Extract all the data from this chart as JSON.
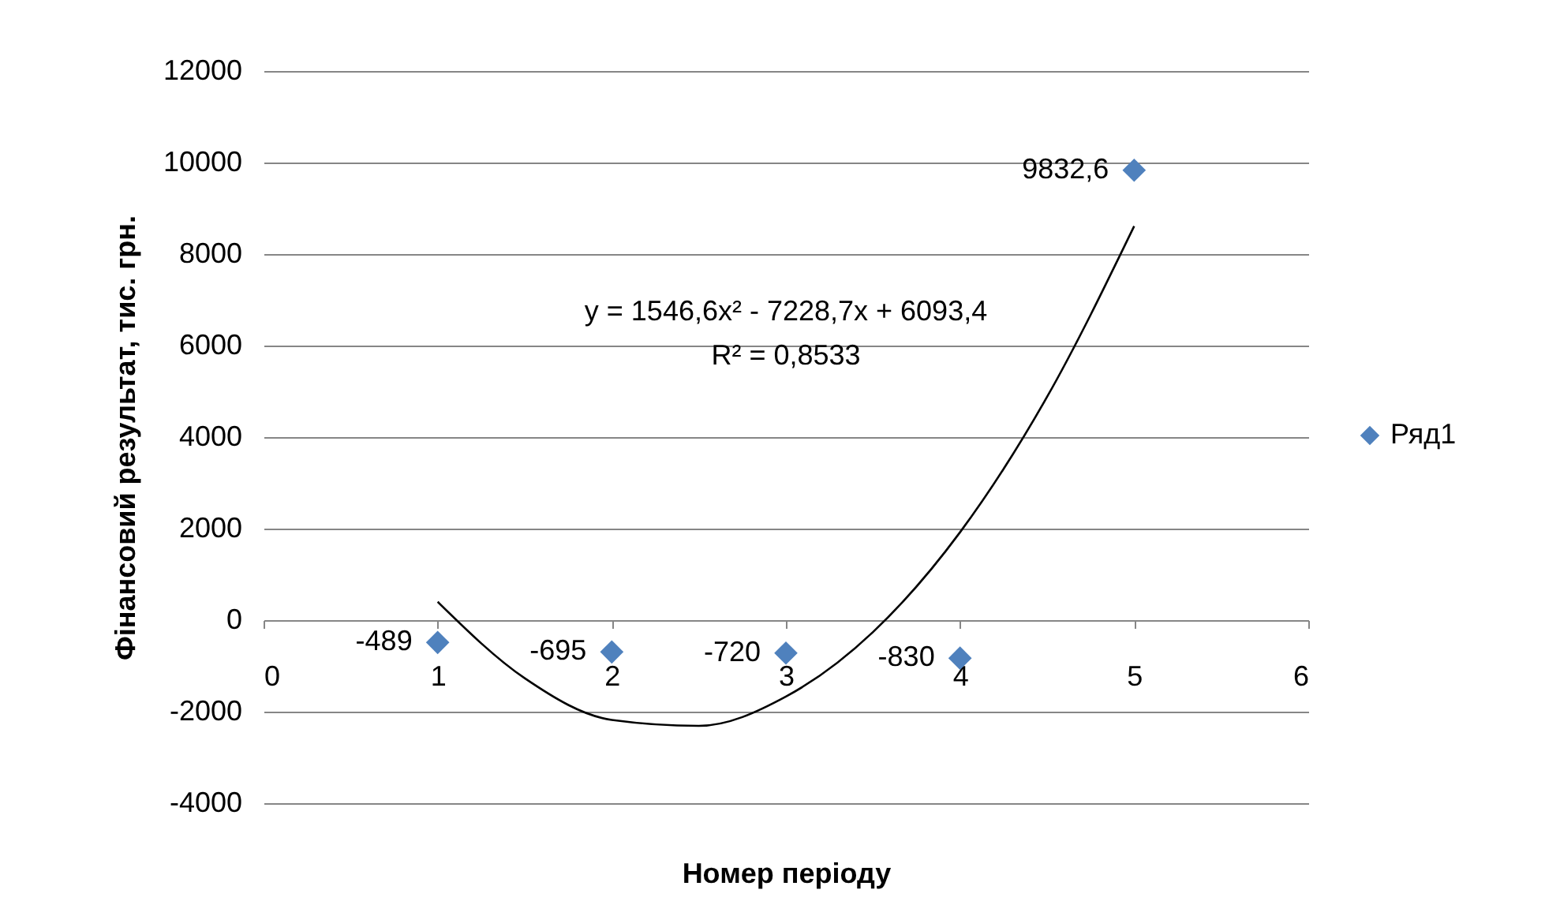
{
  "chart_data": {
    "type": "scatter",
    "xlabel": "Номер періоду",
    "ylabel": "Фінансовий результат, тис. грн.",
    "xlim": [
      0,
      6
    ],
    "xticks": [
      0,
      1,
      2,
      3,
      4,
      5,
      6
    ],
    "ylim": [
      -4000,
      12000
    ],
    "yticks": [
      -4000,
      -2000,
      0,
      2000,
      4000,
      6000,
      8000,
      10000,
      12000
    ],
    "grid": "y",
    "legend": "right",
    "annotations": [
      "y = 1546,6x² - 7228,7x + 6093,4",
      "R² = 0,8533"
    ],
    "series": [
      {
        "name": "Ряд1",
        "marker": "diamond",
        "color": "#4f81bd",
        "x": [
          1,
          2,
          3,
          4,
          5
        ],
        "values": [
          -489,
          -695,
          -720,
          -830,
          9832.6
        ],
        "value_labels": [
          "-489",
          "-695",
          "-720",
          "-830",
          "9832,6"
        ]
      },
      {
        "type": "line",
        "color": "#000000",
        "x": [
          1,
          1.5,
          2,
          2.5,
          3,
          3.5,
          4,
          4.5,
          5
        ],
        "values": [
          400,
          -1270,
          -2180,
          -2310,
          -1670,
          -260,
          1920,
          4880,
          8610
        ]
      }
    ]
  }
}
